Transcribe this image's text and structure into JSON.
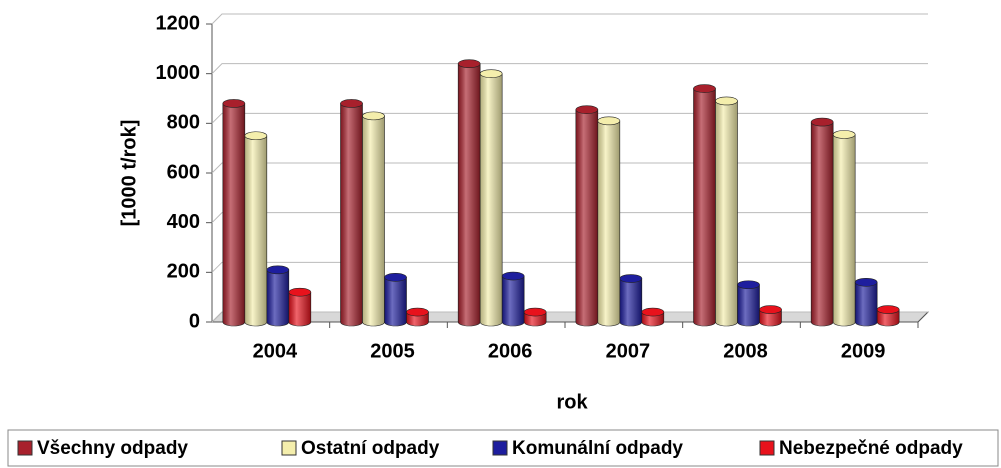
{
  "chart_data": {
    "type": "bar",
    "x_label": "rok",
    "y_label": "[1000 t/rok]",
    "categories": [
      "2004",
      "2005",
      "2006",
      "2007",
      "2008",
      "2009"
    ],
    "series": [
      {
        "name": "Všechny odpady",
        "color": "#a8202c",
        "values": [
          880,
          880,
          1040,
          855,
          940,
          805
        ]
      },
      {
        "name": "Ostatní odpady",
        "color": "#f4eeac",
        "values": [
          750,
          830,
          1000,
          810,
          890,
          755
        ]
      },
      {
        "name": "Komunální odpady",
        "color": "#1e1e9e",
        "values": [
          210,
          180,
          185,
          175,
          150,
          160
        ]
      },
      {
        "name": "Nebezpečné odpady",
        "color": "#e8121c",
        "values": [
          120,
          40,
          40,
          40,
          50,
          50
        ]
      }
    ],
    "ylim": [
      0,
      1200
    ],
    "yticks": [
      0,
      200,
      400,
      600,
      800,
      1000,
      1200
    ],
    "grid": true,
    "legend": "bottom"
  }
}
